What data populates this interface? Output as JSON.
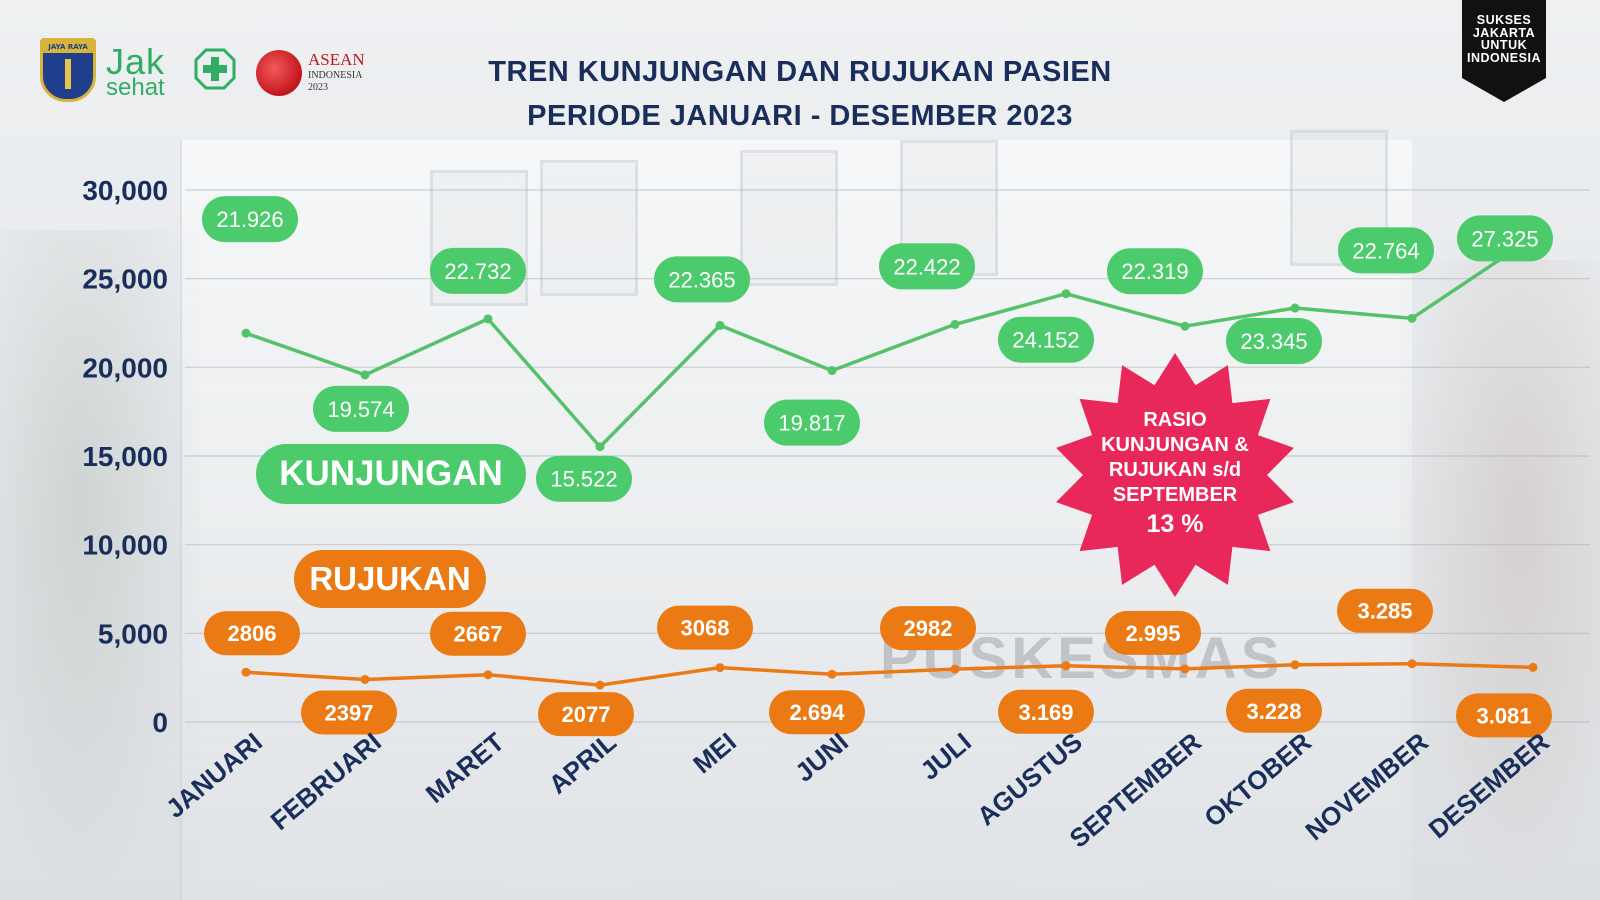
{
  "title": {
    "line1": "TREN KUNJUNGAN DAN RUJUKAN PASIEN",
    "line2": "PERIODE JANUARI - DESEMBER 2023"
  },
  "logos": {
    "dki_band": "JAYA RAYA",
    "jak_top": "Jak",
    "jak_bottom": "sehat",
    "asean_name": "ASEAN",
    "asean_country": "INDONESIA",
    "asean_year": "2023",
    "badge_lines": [
      "SUKSES",
      "JAKARTA",
      "UNTUK",
      "INDONESIA"
    ]
  },
  "background": {
    "sign_text": "PUSKESMAS"
  },
  "tags": {
    "kunjungan": "KUNJUNGAN",
    "rujukan": "RUJUKAN"
  },
  "callout": {
    "lines": [
      "RASIO",
      "KUNJUNGAN &",
      "RUJUKAN s/d",
      "SEPTEMBER"
    ],
    "value": "13 %"
  },
  "colors": {
    "kunjungan": "#4ccb6d",
    "kunjungan_line": "#55c26a",
    "rujukan": "#ec7a14",
    "axis_text": "#1a2e5c",
    "burst": "#e8275a",
    "badge": "#111111"
  },
  "chart_data": {
    "type": "line",
    "title": "TREN KUNJUNGAN DAN RUJUKAN PASIEN PERIODE JANUARI - DESEMBER 2023",
    "categories": [
      "JANUARI",
      "FEBRUARI",
      "MARET",
      "APRIL",
      "MEI",
      "JUNI",
      "JULI",
      "AGUSTUS",
      "SEPTEMBER",
      "OKTOBER",
      "NOVEMBER",
      "DESEMBER"
    ],
    "ylim": [
      0,
      30000
    ],
    "yticks": [
      0,
      5000,
      10000,
      15000,
      20000,
      25000,
      30000
    ],
    "ytick_labels": [
      "0",
      "5,000",
      "10,000",
      "15,000",
      "20,000",
      "25,000",
      "30,000"
    ],
    "grid": true,
    "series": [
      {
        "name": "KUNJUNGAN",
        "values": [
          21926,
          19574,
          22732,
          15522,
          22365,
          19817,
          22422,
          24152,
          22319,
          23345,
          22764,
          27325
        ],
        "labels": [
          "21.926",
          "19.574",
          "22.732",
          "15.522",
          "22.365",
          "19.817",
          "22.422",
          "24.152",
          "22.319",
          "23.345",
          "22.764",
          "27.325"
        ]
      },
      {
        "name": "RUJUKAN",
        "values": [
          2806,
          2397,
          2667,
          2077,
          3068,
          2694,
          2982,
          3169,
          2995,
          3228,
          3285,
          3081
        ],
        "labels": [
          "2806",
          "2397",
          "2667",
          "2077",
          "3068",
          "2.694",
          "2982",
          "3.169",
          "2.995",
          "3.228",
          "3.285",
          "3.081"
        ]
      }
    ]
  }
}
